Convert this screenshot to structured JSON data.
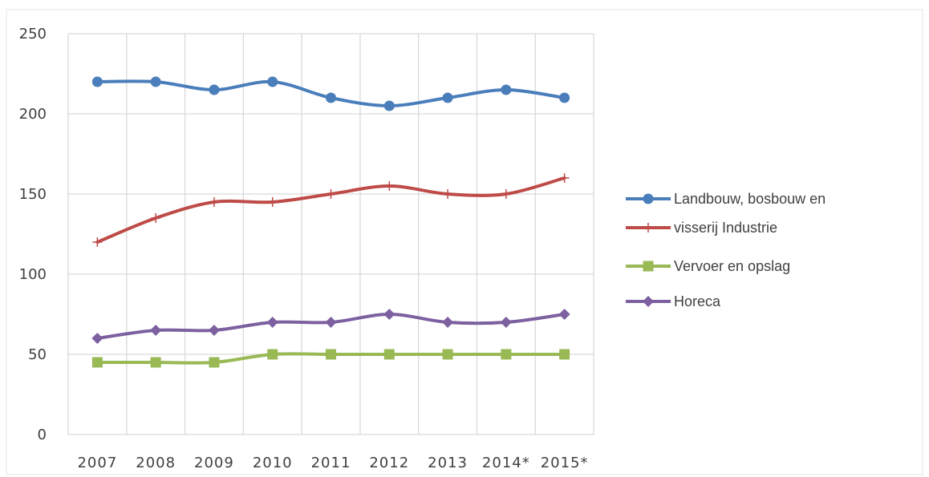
{
  "chart_data": {
    "type": "line",
    "categories": [
      "2007",
      "2008",
      "2009",
      "2010",
      "2011",
      "2012",
      "2013",
      "2014*",
      "2015*"
    ],
    "series": [
      {
        "name": "Landbouw, bosbouw en",
        "color": "#4a7ebb",
        "marker": "circle",
        "values": [
          220,
          220,
          215,
          220,
          210,
          205,
          210,
          215,
          210
        ]
      },
      {
        "name": "visserij Industrie",
        "color": "#be4b48",
        "marker": "plus",
        "values": [
          120,
          135,
          145,
          145,
          150,
          155,
          150,
          150,
          160
        ]
      },
      {
        "name": "Vervoer en opslag",
        "color": "#98b954",
        "marker": "square",
        "values": [
          45,
          45,
          45,
          50,
          50,
          50,
          50,
          50,
          50
        ]
      },
      {
        "name": "Horeca",
        "color": "#7d60a0",
        "marker": "diamond",
        "values": [
          60,
          65,
          65,
          70,
          70,
          75,
          70,
          70,
          75
        ]
      }
    ],
    "yticks": [
      "0",
      "50",
      "100",
      "150",
      "200",
      "250"
    ],
    "ylim": [
      0,
      250
    ],
    "title": "",
    "xlabel": "",
    "ylabel": "",
    "grid": true,
    "legend_position": "right"
  }
}
